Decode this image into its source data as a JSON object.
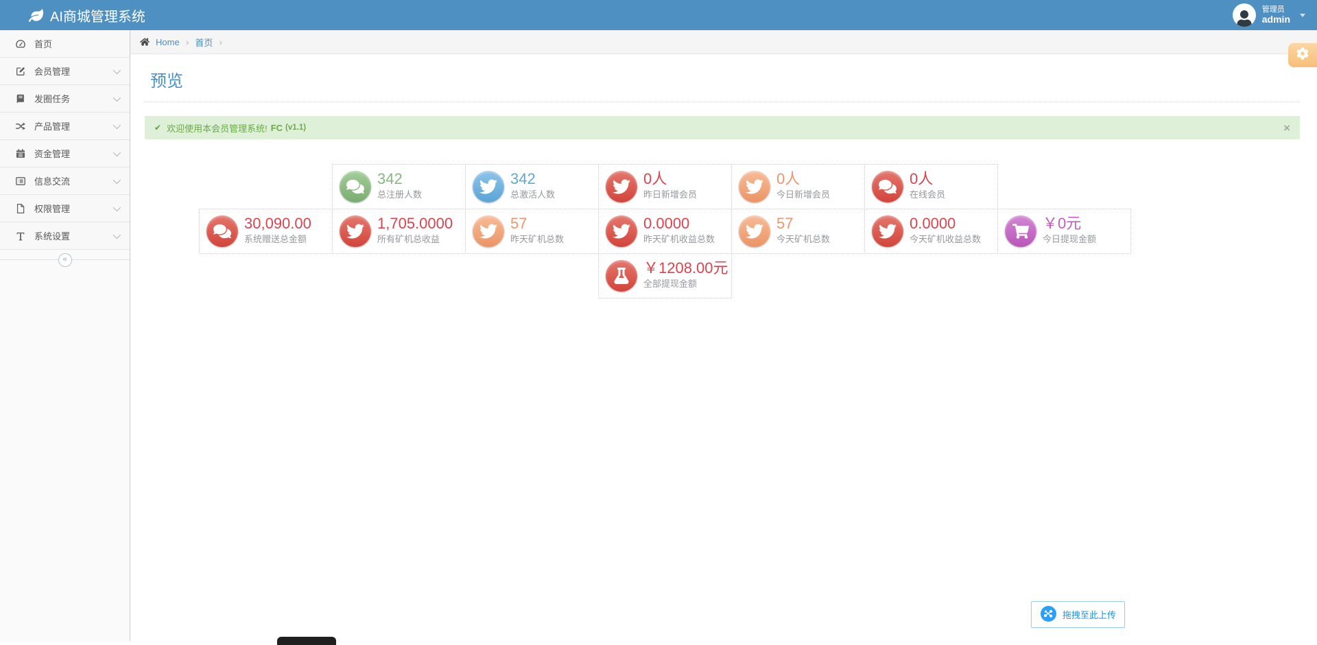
{
  "navbar": {
    "brand": "AI商城管理系统",
    "user": {
      "role": "管理员",
      "name": "admin"
    }
  },
  "sidebar": {
    "items": [
      {
        "label": "首页",
        "icon": "dashboard-icon",
        "expandable": false
      },
      {
        "label": "会员管理",
        "icon": "edit-icon",
        "expandable": true
      },
      {
        "label": "发圈任务",
        "icon": "book-icon",
        "expandable": true
      },
      {
        "label": "产品管理",
        "icon": "shuffle-icon",
        "expandable": true
      },
      {
        "label": "资金管理",
        "icon": "calendar-icon",
        "expandable": true
      },
      {
        "label": "信息交流",
        "icon": "list-icon",
        "expandable": true
      },
      {
        "label": "权限管理",
        "icon": "file-icon",
        "expandable": true
      },
      {
        "label": "系统设置",
        "icon": "text-width-icon",
        "expandable": true
      }
    ],
    "collapse_glyph": "«"
  },
  "breadcrumb": {
    "home": "Home",
    "current": "首页",
    "separator": "›"
  },
  "page": {
    "title": "预览"
  },
  "alert": {
    "check_glyph": "✔",
    "message": "欢迎使用本会员管理系统!",
    "strong": "FC",
    "version": "(v1.1)",
    "close_glyph": "×"
  },
  "stats": {
    "rows": [
      [
        {
          "icon": "comments-icon",
          "theme": "green",
          "value": "342",
          "label": "总注册人数"
        },
        {
          "icon": "twitter-icon",
          "theme": "blue",
          "value": "342",
          "label": "总激活人数"
        },
        {
          "icon": "twitter-icon",
          "theme": "red",
          "value": "0人",
          "label": "昨日新增会员"
        },
        {
          "icon": "twitter-icon",
          "theme": "orange",
          "value": "0人",
          "label": "今日新增会员"
        },
        {
          "icon": "comments-icon",
          "theme": "red",
          "value": "0人",
          "label": "在线会员"
        }
      ],
      [
        {
          "icon": "comments-icon",
          "theme": "red",
          "value": "30,090.00",
          "label": "系统赠送总金额"
        },
        {
          "icon": "twitter-icon",
          "theme": "red",
          "value": "1,705.0000",
          "label": "所有矿机总收益"
        },
        {
          "icon": "twitter-icon",
          "theme": "orange",
          "value": "57",
          "label": "昨天矿机总数"
        },
        {
          "icon": "twitter-icon",
          "theme": "red",
          "value": "0.0000",
          "label": "昨天矿机收益总数"
        },
        {
          "icon": "twitter-icon",
          "theme": "orange",
          "value": "57",
          "label": "今天矿机总数"
        },
        {
          "icon": "twitter-icon",
          "theme": "red",
          "value": "0.0000",
          "label": "今天矿机收益总数"
        },
        {
          "icon": "cart-icon",
          "theme": "purple",
          "value": "￥0元",
          "label": "今日提现金额"
        }
      ],
      [
        {
          "icon": "flask-icon",
          "theme": "red",
          "value": "￥1208.00元",
          "label": "全部提现金额"
        }
      ]
    ]
  },
  "upload": {
    "label": "拖拽至此上传"
  },
  "colors": {
    "navbar": "#4e90c2",
    "title_blue": "#478fca",
    "alert_green": "#69aa46",
    "theme_green": "#87b87f",
    "theme_blue": "#62a8d1",
    "theme_red": "#d9444f",
    "theme_orange": "#ee9572",
    "theme_purple": "#c35ec3"
  }
}
